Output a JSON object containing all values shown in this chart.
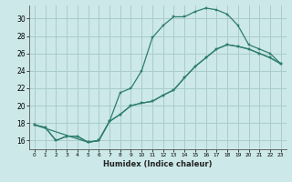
{
  "title": "",
  "xlabel": "Humidex (Indice chaleur)",
  "background_color": "#cce8e8",
  "grid_color": "#aacccc",
  "line_color": "#2e7d6e",
  "line2_x": [
    0,
    1,
    2,
    3,
    4,
    5,
    6,
    7,
    8,
    9,
    10,
    11,
    12,
    13,
    14,
    15,
    16,
    17,
    18,
    19,
    20,
    21,
    22,
    23
  ],
  "line2_y": [
    17.8,
    17.5,
    16.0,
    16.5,
    16.5,
    15.8,
    16.0,
    18.2,
    21.5,
    22.0,
    24.0,
    27.8,
    29.2,
    30.2,
    30.2,
    30.8,
    31.2,
    31.0,
    30.5,
    29.2,
    27.0,
    26.5,
    26.0,
    24.8
  ],
  "line1_x": [
    0,
    5,
    6,
    7,
    8,
    9,
    10,
    11,
    12,
    13,
    14,
    15,
    16,
    17,
    18,
    19,
    20,
    21,
    22,
    23
  ],
  "line1_y": [
    17.8,
    15.8,
    16.0,
    18.2,
    19.0,
    20.0,
    20.3,
    20.5,
    21.2,
    21.8,
    23.2,
    24.5,
    25.5,
    26.5,
    27.0,
    26.8,
    26.5,
    26.0,
    25.5,
    24.8
  ],
  "line3_x": [
    0,
    1,
    2,
    3,
    4,
    5,
    6,
    7,
    8,
    9,
    10,
    11,
    12,
    13,
    14,
    15,
    16,
    17,
    18,
    19,
    20,
    21,
    22,
    23
  ],
  "line3_y": [
    17.8,
    17.5,
    16.0,
    16.5,
    16.5,
    15.8,
    16.0,
    18.2,
    19.0,
    20.0,
    20.3,
    20.5,
    21.2,
    21.8,
    23.2,
    24.5,
    25.5,
    26.5,
    27.0,
    26.8,
    26.5,
    26.0,
    25.5,
    24.8
  ],
  "xlim": [
    -0.5,
    23.5
  ],
  "ylim": [
    15.0,
    31.5
  ],
  "xticks": [
    0,
    1,
    2,
    3,
    4,
    5,
    6,
    7,
    8,
    9,
    10,
    11,
    12,
    13,
    14,
    15,
    16,
    17,
    18,
    19,
    20,
    21,
    22,
    23
  ],
  "yticks": [
    16,
    18,
    20,
    22,
    24,
    26,
    28,
    30
  ]
}
